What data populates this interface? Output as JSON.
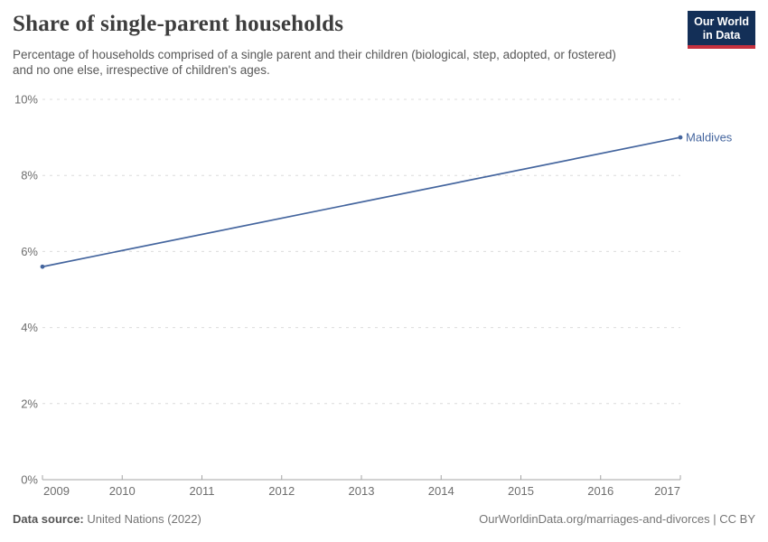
{
  "header": {
    "title": "Share of single-parent households",
    "subtitle": "Percentage of households comprised of a single parent and their children (biological, step, adopted, or fostered) and no one else, irrespective of children's ages."
  },
  "logo": {
    "line1": "Our World",
    "line2": "in Data",
    "bg_color": "#132f57",
    "bar_color": "#c5303e"
  },
  "footer": {
    "source_label": "Data source:",
    "source_value": "United Nations (2022)",
    "link": "OurWorldinData.org/marriages-and-divorces | CC BY"
  },
  "colors": {
    "series_blue": "#44659e",
    "grid": "#dcdcdc",
    "axis": "#a5a5a5",
    "tick_label": "#6e6e6e"
  },
  "chart_data": {
    "type": "line",
    "title": "Share of single-parent households",
    "subtitle": "Percentage of households comprised of a single parent and their children (biological, step, adopted, or fostered) and no one else, irrespective of children's ages.",
    "xlabel": "",
    "ylabel": "",
    "xlim": [
      2009,
      2017
    ],
    "ylim": [
      0,
      10
    ],
    "grid": "horizontal-dashed",
    "legend_position": "end-of-line-label",
    "xticks": [
      2009,
      2010,
      2011,
      2012,
      2013,
      2014,
      2015,
      2016,
      2017
    ],
    "yticks": [
      {
        "value": 0,
        "label": "0%"
      },
      {
        "value": 2,
        "label": "2%"
      },
      {
        "value": 4,
        "label": "4%"
      },
      {
        "value": 6,
        "label": "6%"
      },
      {
        "value": 8,
        "label": "8%"
      },
      {
        "value": 10,
        "label": "10%"
      }
    ],
    "series": [
      {
        "name": "Maldives",
        "color": "#44659e",
        "points": [
          {
            "x": 2009,
            "y": 5.6
          },
          {
            "x": 2017,
            "y": 9.0
          }
        ]
      }
    ]
  }
}
